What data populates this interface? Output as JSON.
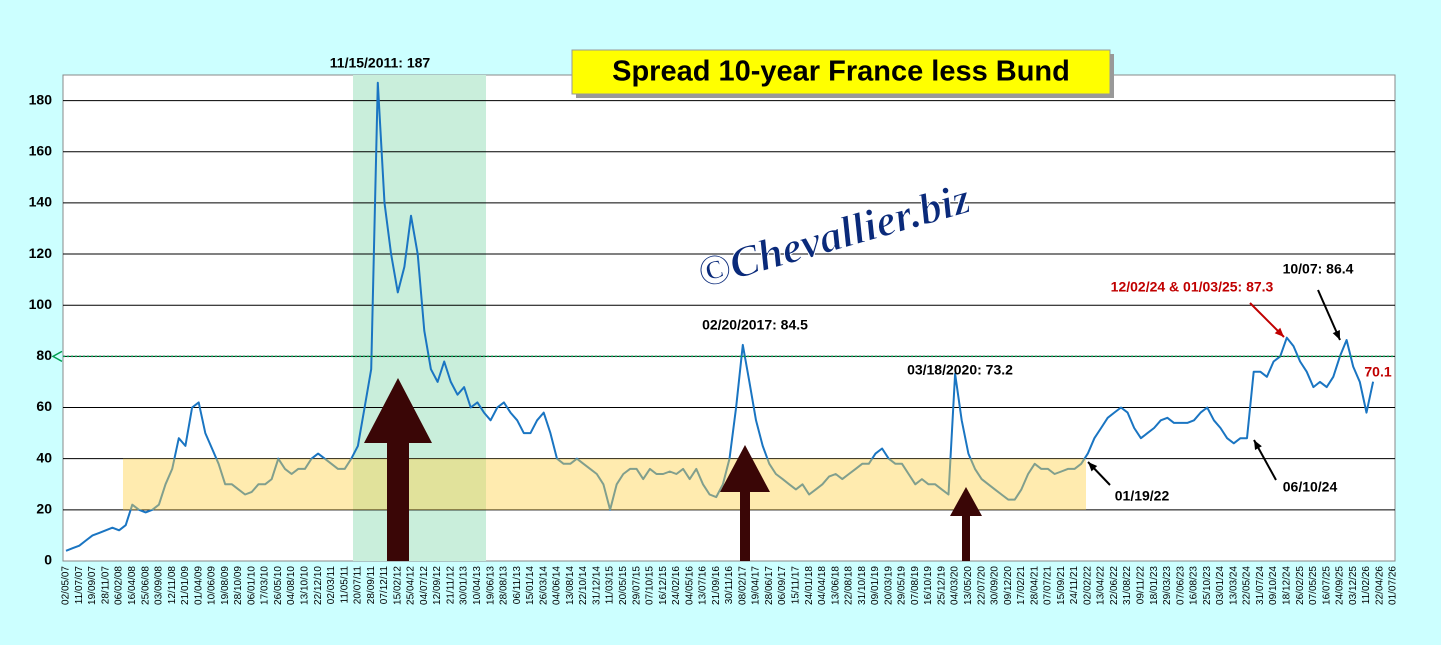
{
  "chart_data": {
    "type": "line",
    "title": "Spread 10-year France less Bund",
    "watermark": "©Chevallier.biz",
    "categories": [
      "02/05/07",
      null,
      "11/07/07",
      null,
      "19/09/07",
      null,
      "28/11/07",
      null,
      "06/02/08",
      null,
      "16/04/08",
      null,
      "25/06/08",
      null,
      "03/09/08",
      null,
      "12/11/08",
      null,
      "21/01/09",
      null,
      "01/04/09",
      null,
      "10/06/09",
      null,
      "19/08/09",
      null,
      "28/10/09",
      null,
      "06/01/10",
      null,
      "17/03/10",
      null,
      "26/05/10",
      null,
      "04/08/10",
      null,
      "13/10/10",
      null,
      "22/12/10",
      null,
      "02/03/11",
      null,
      "11/05/11",
      null,
      "20/07/11",
      null,
      "28/09/11",
      null,
      "07/12/11",
      null,
      "15/02/12",
      null,
      "25/04/12",
      null,
      "04/07/12",
      null,
      "12/09/12",
      null,
      "21/11/12",
      null,
      "30/01/13",
      null,
      "10/04/13",
      null,
      "19/06/13",
      null,
      "28/08/13",
      null,
      "06/11/13",
      null,
      "15/01/14",
      null,
      "26/03/14",
      null,
      "04/06/14",
      null,
      "13/08/14",
      null,
      "22/10/14",
      null,
      "31/12/14",
      null,
      "11/03/15",
      null,
      "20/05/15",
      null,
      "29/07/15",
      null,
      "07/10/15",
      null,
      "16/12/15",
      null,
      "24/02/16",
      null,
      "04/05/16",
      null,
      "13/07/16",
      null,
      "21/09/16",
      null,
      "30/11/16",
      null,
      "08/02/17",
      null,
      "19/04/17",
      null,
      "28/06/17",
      null,
      "06/09/17",
      null,
      "15/11/17",
      null,
      "24/01/18",
      null,
      "04/04/18",
      null,
      "13/06/18",
      null,
      "22/08/18",
      null,
      "31/10/18",
      null,
      "09/01/19",
      null,
      "20/03/19",
      null,
      "29/05/19",
      null,
      "07/08/19",
      null,
      "16/10/19",
      null,
      "25/12/19",
      null,
      "04/03/20",
      null,
      "13/05/20",
      null,
      "22/07/20",
      null,
      "30/09/20",
      null,
      "09/12/20",
      null,
      "17/02/21",
      null,
      "28/04/21",
      null,
      "07/07/21",
      null,
      "15/09/21",
      null,
      "24/11/21",
      null,
      "02/02/22",
      null,
      "13/04/22",
      null,
      "22/06/22",
      null,
      "31/08/22",
      null,
      "09/11/22",
      null,
      "18/01/23",
      null,
      "29/03/23",
      null,
      "07/06/23",
      null,
      "16/08/23",
      null,
      "25/10/23",
      null,
      "03/01/24",
      null,
      "13/03/24",
      null,
      "22/05/24",
      null,
      "31/07/24",
      null,
      "09/10/24",
      null,
      "18/12/24",
      null,
      "26/02/25",
      null,
      "07/05/25",
      null,
      "16/07/25",
      null,
      "24/09/25",
      null,
      "03/12/25",
      null,
      "11/02/26",
      null,
      "22/04/26",
      null,
      "01/07/26"
    ],
    "series": [
      {
        "color": "#1a75c2",
        "values": [
          4,
          5,
          6,
          8,
          10,
          11,
          12,
          13,
          12,
          14,
          22,
          20,
          19,
          20,
          22,
          30,
          36,
          48,
          45,
          60,
          62,
          50,
          44,
          38,
          30,
          30,
          28,
          26,
          27,
          30,
          30,
          32,
          40,
          36,
          34,
          36,
          36,
          40,
          42,
          40,
          38,
          36,
          36,
          40,
          45,
          60,
          75,
          187,
          140,
          120,
          105,
          115,
          135,
          120,
          90,
          75,
          70,
          78,
          70,
          65,
          68,
          60,
          62,
          58,
          55,
          60,
          62,
          58,
          55,
          50,
          50,
          55,
          58,
          50,
          40,
          38,
          38,
          40,
          38,
          36,
          34,
          30,
          20,
          30,
          34,
          36,
          36,
          32,
          36,
          34,
          34,
          35,
          34,
          36,
          32,
          36,
          30,
          26,
          25,
          30,
          40,
          60,
          84.5,
          70,
          55,
          45,
          38,
          34,
          32,
          30,
          28,
          30,
          26,
          28,
          30,
          33,
          34,
          32,
          34,
          36,
          38,
          38,
          42,
          44,
          40,
          38,
          38,
          34,
          30,
          32,
          30,
          30,
          28,
          26,
          73.2,
          55,
          42,
          36,
          32,
          30,
          28,
          26,
          24,
          24,
          28,
          34,
          38,
          36,
          36,
          34,
          35,
          36,
          36,
          38,
          42,
          48,
          52,
          56,
          58,
          60,
          58,
          52,
          48,
          50,
          52,
          55,
          56,
          54,
          54,
          54,
          55,
          58,
          60,
          55,
          52,
          48,
          46,
          48,
          48,
          74,
          74,
          72,
          78,
          80,
          87.3,
          84,
          78,
          74,
          68,
          70,
          68,
          72,
          80,
          86.4,
          76,
          70,
          58,
          70.1,
          null,
          null,
          null
        ]
      }
    ],
    "ylim": [
      0,
      190
    ],
    "yticks": [
      0,
      20,
      40,
      60,
      80,
      100,
      120,
      140,
      160,
      180
    ],
    "grid": true,
    "band_y": [
      20,
      40
    ],
    "reference_y": 80,
    "annotations": [
      "11/15/2011: 187",
      "02/20/2017: 84.5",
      "03/18/2020:  73.2",
      "12/02/24 & 01/03/25: 87.3",
      "10/07: 86.4",
      "70.1",
      "01/19/22",
      "06/10/24"
    ]
  }
}
